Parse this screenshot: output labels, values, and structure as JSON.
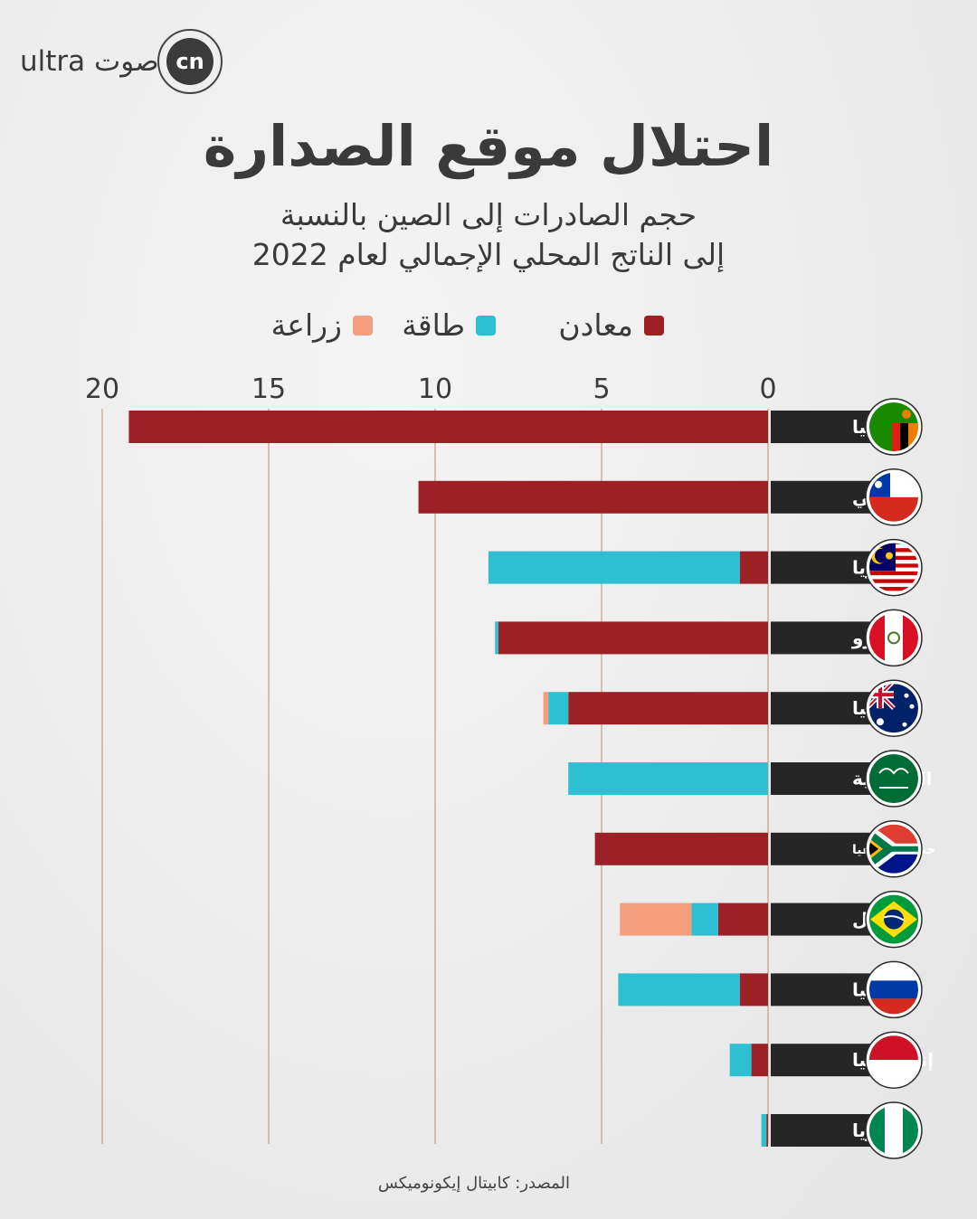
{
  "brand": {
    "wordmark": "ultra صوت",
    "icon_text": "cn"
  },
  "title": "احتلال موقع الصدارة",
  "subtitle_line1": "حجم الصادرات إلى الصين بالنسبة",
  "subtitle_line2": "إلى الناتج المحلي الإجمالي لعام 2022",
  "source": "المصدر: كابيتال إيكونوميكس",
  "colors": {
    "minerals": "#9b2127",
    "energy": "#2fbfd3",
    "agriculture": "#f59e7e",
    "label_bg": "#262626",
    "gridline": "#b8906a"
  },
  "chart_data": {
    "type": "bar",
    "orientation": "horizontal-stacked",
    "xlim": [
      0,
      20
    ],
    "x_ticks": [
      "0",
      "5",
      "10",
      "15",
      "20"
    ],
    "x_tick_values": [
      0,
      5,
      10,
      15,
      20
    ],
    "legend": [
      {
        "key": "minerals",
        "label": "معادن",
        "color": "#9b2127"
      },
      {
        "key": "energy",
        "label": "طاقة",
        "color": "#2fbfd3"
      },
      {
        "key": "agriculture",
        "label": "زراعة",
        "color": "#f59e7e"
      }
    ],
    "categories": [
      "زامبيا",
      "تشيلي",
      "ماليزيا",
      "البيرو",
      "أستراليا",
      "السعودية",
      "جنوب إفريقيا",
      "البرازيل",
      "روسيا",
      "إندونيسيا",
      "نيجيريا"
    ],
    "flags": [
      "zambia-flag",
      "chile-flag",
      "malaysia-flag",
      "peru-flag",
      "australia-flag",
      "saudi-flag",
      "south-africa-flag",
      "brazil-flag",
      "russia-flag",
      "indonesia-flag",
      "nigeria-flag"
    ],
    "series": [
      {
        "key": "minerals",
        "name": "معادن",
        "values": [
          19.2,
          10.5,
          0.85,
          8.1,
          6.0,
          0,
          5.2,
          1.5,
          0.85,
          0.5,
          0.05
        ]
      },
      {
        "key": "energy",
        "name": "طاقة",
        "values": [
          0,
          0,
          7.55,
          0.1,
          0.6,
          6.0,
          0,
          0.8,
          3.65,
          0.65,
          0.15
        ]
      },
      {
        "key": "agriculture",
        "name": "زراعة",
        "values": [
          0,
          0,
          0,
          0,
          0.15,
          0,
          0,
          2.15,
          0,
          0,
          0
        ]
      }
    ]
  }
}
